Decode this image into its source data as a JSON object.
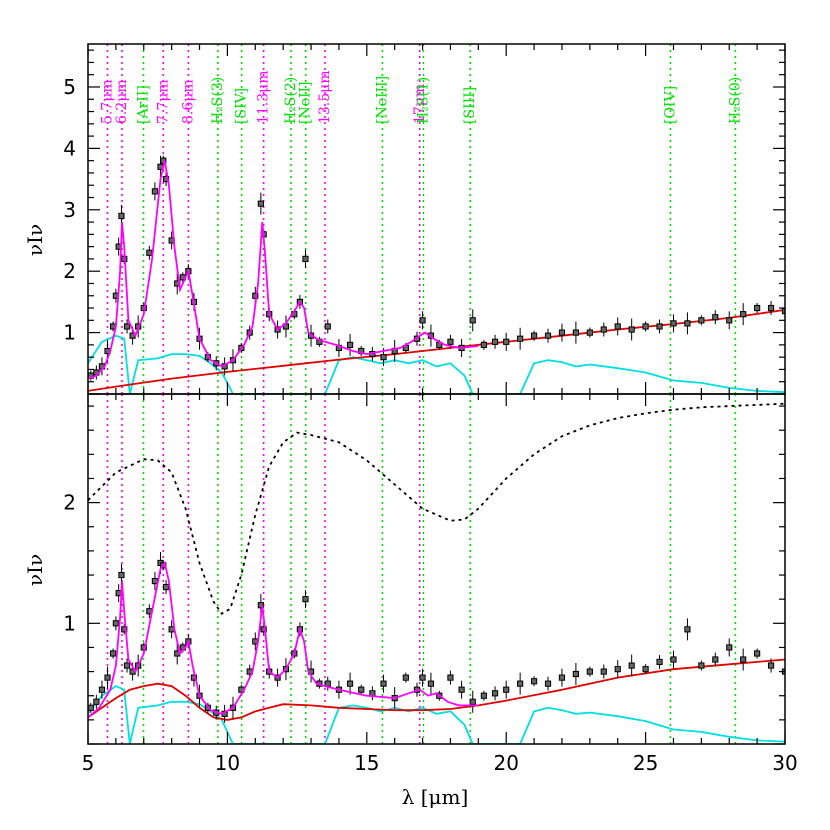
{
  "chart_data": {
    "type": "line",
    "xlabel": "λ [μm]",
    "ylabel": "νIν",
    "xlim": [
      5,
      30
    ],
    "xticks": [
      5,
      10,
      15,
      20,
      25,
      30
    ],
    "colors": {
      "data": "#000000",
      "fit": "#ff00ff",
      "continuum": "#e00000",
      "filter": "#00e0e0",
      "pah_line": "#ff00ff",
      "gas_line": "#00e000",
      "extinction": "#000000"
    },
    "lines": [
      {
        "label": "5.7μm",
        "x": 5.7,
        "kind": "pah"
      },
      {
        "label": "6.2μm",
        "x": 6.22,
        "kind": "pah"
      },
      {
        "label": "[ArII]",
        "x": 6.99,
        "kind": "gas"
      },
      {
        "label": "7.7μm",
        "x": 7.7,
        "kind": "pah"
      },
      {
        "label": "8.6μm",
        "x": 8.6,
        "kind": "pah"
      },
      {
        "label": "H₂S(3)",
        "x": 9.66,
        "kind": "gas"
      },
      {
        "label": "[SIV]",
        "x": 10.51,
        "kind": "gas"
      },
      {
        "label": "11.3μm",
        "x": 11.3,
        "kind": "pah"
      },
      {
        "label": "H₂S(2)",
        "x": 12.28,
        "kind": "gas"
      },
      {
        "label": "[NeII]",
        "x": 12.81,
        "kind": "gas"
      },
      {
        "label": "13.5μm",
        "x": 13.5,
        "kind": "pah"
      },
      {
        "label": "[NeIII]",
        "x": 15.56,
        "kind": "gas"
      },
      {
        "label": "17μm",
        "x": 16.9,
        "kind": "pah"
      },
      {
        "label": "H₂S(1)",
        "x": 17.03,
        "kind": "gas"
      },
      {
        "label": "[SIII]",
        "x": 18.71,
        "kind": "gas"
      },
      {
        "label": "[OIV]",
        "x": 25.89,
        "kind": "gas"
      },
      {
        "label": "H₂S(0)",
        "x": 28.22,
        "kind": "gas"
      }
    ],
    "panels": [
      {
        "name": "top",
        "ylim": [
          0,
          5.7
        ],
        "yticks": [
          1,
          2,
          3,
          4,
          5
        ],
        "ytick_labels": [
          "1",
          "2",
          "3",
          "4",
          "5"
        ],
        "show_line_labels": true,
        "continuum": {
          "x": [
            5,
            6,
            8,
            10,
            12,
            14,
            16,
            18,
            20,
            22,
            24,
            26,
            28,
            30
          ],
          "y": [
            0.05,
            0.12,
            0.25,
            0.36,
            0.46,
            0.56,
            0.65,
            0.75,
            0.85,
            0.95,
            1.05,
            1.14,
            1.24,
            1.37
          ]
        },
        "fit": {
          "x": [
            5,
            5.3,
            5.6,
            5.8,
            6.0,
            6.15,
            6.22,
            6.3,
            6.45,
            6.7,
            7.0,
            7.3,
            7.6,
            7.75,
            7.9,
            8.1,
            8.3,
            8.5,
            8.6,
            8.75,
            9.0,
            9.4,
            9.8,
            10.2,
            10.6,
            10.9,
            11.1,
            11.25,
            11.35,
            11.5,
            11.8,
            12.1,
            12.4,
            12.6,
            12.75,
            12.9,
            13.2,
            13.5,
            13.9,
            14.5,
            15.0,
            15.6,
            16.2,
            16.6,
            16.9,
            17.1,
            17.4,
            17.8,
            18.3,
            19.0
          ],
          "y": [
            0.25,
            0.3,
            0.45,
            0.7,
            1.1,
            2.0,
            2.8,
            2.4,
            1.2,
            0.95,
            1.3,
            2.2,
            3.5,
            3.8,
            3.4,
            2.4,
            1.7,
            1.9,
            2.0,
            1.6,
            0.9,
            0.55,
            0.45,
            0.55,
            0.8,
            1.1,
            1.8,
            2.8,
            2.3,
            1.3,
            1.05,
            1.15,
            1.35,
            1.5,
            1.4,
            1.0,
            0.9,
            0.85,
            0.8,
            0.7,
            0.65,
            0.7,
            0.75,
            0.85,
            0.95,
            1.0,
            0.9,
            0.8,
            0.75,
            0.78
          ]
        },
        "filter": {
          "x": [
            5.0,
            5.5,
            6.0,
            6.3,
            6.5,
            6.8,
            7.5,
            8.0,
            8.5,
            9.0,
            9.4,
            9.8,
            10.2,
            10.6,
            11.0,
            11.5,
            12.0,
            12.5,
            13.0,
            13.5,
            14.0,
            14.5,
            15.0,
            15.5,
            16.0,
            16.5,
            17.0,
            17.5,
            18.0,
            18.5,
            18.8,
            19.0,
            20.0,
            20.5,
            21.0,
            21.5,
            22.0,
            22.5,
            23.0,
            24.0,
            25.0,
            26.0,
            27.0,
            28.0,
            29.0,
            30.0
          ],
          "y": [
            0.5,
            0.85,
            0.95,
            0.9,
            0.0,
            0.55,
            0.58,
            0.65,
            0.65,
            0.62,
            0.5,
            0.35,
            0.0,
            0.0,
            0.0,
            0.0,
            0.0,
            0.0,
            0.0,
            0.0,
            0.55,
            0.6,
            0.55,
            0.5,
            0.55,
            0.5,
            0.55,
            0.45,
            0.5,
            0.3,
            0.0,
            0.0,
            0.0,
            0.0,
            0.5,
            0.55,
            0.52,
            0.45,
            0.48,
            0.42,
            0.35,
            0.22,
            0.18,
            0.1,
            0.05,
            0.03
          ]
        },
        "data_points": {
          "x": [
            5.1,
            5.3,
            5.5,
            5.7,
            5.9,
            6.0,
            6.1,
            6.2,
            6.3,
            6.4,
            6.6,
            6.8,
            7.0,
            7.2,
            7.4,
            7.6,
            7.7,
            7.8,
            8.0,
            8.2,
            8.4,
            8.6,
            8.8,
            9.0,
            9.3,
            9.6,
            9.9,
            10.2,
            10.5,
            10.8,
            11.0,
            11.2,
            11.3,
            11.5,
            11.8,
            12.1,
            12.4,
            12.6,
            12.8,
            13.0,
            13.3,
            13.6,
            14.0,
            14.4,
            14.8,
            15.2,
            15.6,
            16.0,
            16.4,
            16.8,
            17.0,
            17.3,
            17.6,
            18.0,
            18.4,
            18.8,
            19.2,
            19.6,
            20.0,
            20.5,
            21.0,
            21.5,
            22.0,
            22.5,
            23.0,
            23.5,
            24.0,
            24.5,
            25.0,
            25.5,
            26.0,
            26.5,
            27.0,
            27.5,
            28.0,
            28.5,
            29.0,
            29.5,
            30.0
          ],
          "y": [
            0.3,
            0.35,
            0.45,
            0.7,
            1.1,
            1.6,
            2.4,
            2.9,
            2.2,
            1.1,
            0.95,
            1.1,
            1.4,
            2.3,
            3.3,
            3.7,
            3.8,
            3.5,
            2.5,
            1.8,
            1.9,
            2.0,
            1.5,
            0.9,
            0.6,
            0.5,
            0.45,
            0.55,
            0.75,
            1.0,
            1.6,
            3.1,
            2.6,
            1.3,
            1.05,
            1.1,
            1.3,
            1.5,
            2.2,
            0.95,
            0.85,
            1.1,
            0.75,
            0.8,
            0.7,
            0.65,
            0.6,
            0.7,
            0.75,
            0.9,
            1.2,
            0.95,
            0.8,
            0.85,
            0.75,
            1.2,
            0.8,
            0.85,
            0.85,
            0.9,
            0.95,
            0.95,
            1.0,
            1.0,
            1.0,
            1.05,
            1.1,
            1.05,
            1.1,
            1.1,
            1.15,
            1.15,
            1.2,
            1.25,
            1.2,
            1.3,
            1.4,
            1.4,
            1.35
          ]
        }
      },
      {
        "name": "bottom",
        "ylim": [
          0,
          2.9
        ],
        "yticks": [
          1,
          2
        ],
        "ytick_labels": [
          "1",
          "2"
        ],
        "show_line_labels": false,
        "continuum": {
          "x": [
            5,
            5.5,
            6,
            6.5,
            7,
            7.5,
            8,
            8.5,
            9,
            9.5,
            10,
            10.5,
            11,
            11.5,
            12,
            13,
            14,
            15,
            16,
            17,
            18,
            19,
            20,
            22,
            24,
            26,
            28,
            30
          ],
          "y": [
            0.22,
            0.3,
            0.38,
            0.45,
            0.48,
            0.5,
            0.48,
            0.4,
            0.3,
            0.22,
            0.2,
            0.22,
            0.27,
            0.3,
            0.33,
            0.32,
            0.3,
            0.29,
            0.28,
            0.28,
            0.29,
            0.32,
            0.36,
            0.45,
            0.55,
            0.62,
            0.66,
            0.7
          ]
        },
        "fit": {
          "x": [
            5,
            5.4,
            5.8,
            6.0,
            6.15,
            6.22,
            6.3,
            6.45,
            6.7,
            7.0,
            7.3,
            7.6,
            7.75,
            7.9,
            8.1,
            8.3,
            8.5,
            8.6,
            8.75,
            9.0,
            9.4,
            9.8,
            10.2,
            10.6,
            10.9,
            11.1,
            11.25,
            11.35,
            11.5,
            11.8,
            12.1,
            12.4,
            12.6,
            12.75,
            12.9,
            13.2,
            13.5,
            14.0,
            15.0,
            16.0,
            16.5,
            16.9,
            17.2,
            17.5,
            17.9,
            18.3,
            19.0
          ],
          "y": [
            0.22,
            0.3,
            0.45,
            0.65,
            1.05,
            1.35,
            1.1,
            0.7,
            0.6,
            0.75,
            1.1,
            1.45,
            1.5,
            1.35,
            0.95,
            0.75,
            0.8,
            0.85,
            0.65,
            0.4,
            0.28,
            0.25,
            0.3,
            0.45,
            0.6,
            0.85,
            1.15,
            0.95,
            0.6,
            0.55,
            0.62,
            0.75,
            0.95,
            0.85,
            0.6,
            0.5,
            0.48,
            0.45,
            0.4,
            0.38,
            0.42,
            0.45,
            0.4,
            0.42,
            0.35,
            0.32,
            0.32
          ]
        },
        "filter": {
          "x": [
            5.0,
            5.5,
            6.0,
            6.3,
            6.5,
            6.8,
            7.5,
            8.0,
            8.5,
            9.0,
            9.4,
            9.8,
            10.2,
            10.6,
            11.0,
            11.5,
            12.0,
            12.5,
            13.0,
            13.5,
            14.0,
            14.5,
            15.0,
            15.5,
            16.0,
            16.5,
            17.0,
            17.5,
            18.0,
            18.5,
            18.8,
            19.0,
            20.0,
            20.5,
            21.0,
            21.5,
            22.0,
            22.5,
            23.0,
            24.0,
            25.0,
            26.0,
            27.0,
            28.0,
            29.0,
            30.0
          ],
          "y": [
            0.25,
            0.4,
            0.48,
            0.45,
            0.0,
            0.3,
            0.32,
            0.35,
            0.35,
            0.33,
            0.27,
            0.2,
            0.0,
            0.0,
            0.0,
            0.0,
            0.0,
            0.0,
            0.0,
            0.0,
            0.3,
            0.32,
            0.3,
            0.27,
            0.3,
            0.27,
            0.3,
            0.25,
            0.27,
            0.16,
            0.0,
            0.0,
            0.0,
            0.0,
            0.27,
            0.3,
            0.28,
            0.25,
            0.26,
            0.23,
            0.19,
            0.12,
            0.1,
            0.06,
            0.03,
            0.02
          ]
        },
        "extinction": {
          "x": [
            5,
            6,
            7,
            7.5,
            8,
            8.5,
            9,
            9.5,
            9.8,
            10.1,
            10.5,
            11,
            11.5,
            12,
            12.5,
            13,
            14,
            15,
            16,
            17,
            18,
            18.5,
            19,
            20,
            21,
            22,
            23,
            24,
            25,
            26,
            27,
            28,
            29,
            30
          ],
          "y": [
            2.02,
            2.25,
            2.36,
            2.35,
            2.25,
            1.95,
            1.5,
            1.18,
            1.08,
            1.12,
            1.4,
            1.9,
            2.3,
            2.5,
            2.58,
            2.56,
            2.5,
            2.35,
            2.15,
            1.95,
            1.85,
            1.86,
            1.95,
            2.2,
            2.4,
            2.55,
            2.64,
            2.7,
            2.74,
            2.77,
            2.79,
            2.8,
            2.81,
            2.82
          ]
        },
        "data_points": {
          "x": [
            5.1,
            5.3,
            5.5,
            5.7,
            5.9,
            6.0,
            6.1,
            6.2,
            6.3,
            6.4,
            6.6,
            6.8,
            7.0,
            7.2,
            7.4,
            7.6,
            7.7,
            7.8,
            8.0,
            8.2,
            8.4,
            8.6,
            8.8,
            9.0,
            9.3,
            9.6,
            9.9,
            10.2,
            10.5,
            10.8,
            11.0,
            11.2,
            11.3,
            11.5,
            11.8,
            12.1,
            12.4,
            12.6,
            12.8,
            13.0,
            13.3,
            13.6,
            14.0,
            14.4,
            14.8,
            15.2,
            15.6,
            16.0,
            16.4,
            16.8,
            17.0,
            17.3,
            17.6,
            18.0,
            18.4,
            18.8,
            19.2,
            19.6,
            20.0,
            20.5,
            21.0,
            21.5,
            22.0,
            22.5,
            23.0,
            23.5,
            24.0,
            24.5,
            25.0,
            25.5,
            26.0,
            26.5,
            27.0,
            27.5,
            28.0,
            28.5,
            29.0,
            29.5,
            30.0
          ],
          "y": [
            0.3,
            0.35,
            0.45,
            0.55,
            0.75,
            1.0,
            1.25,
            1.4,
            0.95,
            0.65,
            0.6,
            0.65,
            0.8,
            1.1,
            1.35,
            1.5,
            1.48,
            1.3,
            0.95,
            0.75,
            0.8,
            0.85,
            0.55,
            0.4,
            0.3,
            0.26,
            0.25,
            0.3,
            0.45,
            0.6,
            0.85,
            1.15,
            0.95,
            0.6,
            0.55,
            0.62,
            0.75,
            0.95,
            1.2,
            0.6,
            0.5,
            0.5,
            0.45,
            0.5,
            0.45,
            0.42,
            0.5,
            0.38,
            0.55,
            0.45,
            0.55,
            0.5,
            0.4,
            0.55,
            0.45,
            0.35,
            0.4,
            0.42,
            0.45,
            0.5,
            0.52,
            0.5,
            0.55,
            0.58,
            0.6,
            0.6,
            0.62,
            0.65,
            0.62,
            0.68,
            0.7,
            0.95,
            0.65,
            0.7,
            0.8,
            0.7,
            0.75,
            0.65,
            0.6
          ]
        }
      }
    ]
  }
}
